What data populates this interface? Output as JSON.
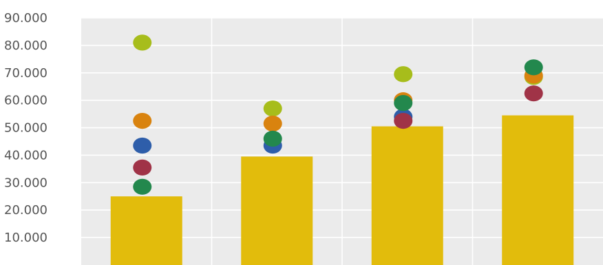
{
  "chart_data": {
    "type": "bar",
    "title": "",
    "xlabel": "",
    "ylabel": "",
    "ylim": [
      0,
      90000
    ],
    "yticks": [
      10000,
      20000,
      30000,
      40000,
      50000,
      60000,
      70000,
      80000,
      90000
    ],
    "ytick_labels": [
      "10.000",
      "20.000",
      "30.000",
      "40.000",
      "50.000",
      "60.000",
      "70.000",
      "80.000",
      "90.000"
    ],
    "grid": true,
    "bar_color": "#E2BC0C",
    "plot_background": "#EBEBEB",
    "grid_color": "#FFFFFF",
    "category_count": 4,
    "bar_values": [
      25000,
      39500,
      50500,
      54500
    ],
    "point_series": [
      {
        "color": "#A7BD1B",
        "values": [
          81000,
          57000,
          69500,
          68500
        ]
      },
      {
        "color": "#D9830F",
        "values": [
          52500,
          51500,
          60000,
          69000
        ]
      },
      {
        "color": "#2E5EAA",
        "values": [
          43500,
          43500,
          54000,
          null
        ]
      },
      {
        "color": "#A03347",
        "values": [
          35500,
          null,
          52500,
          62500
        ]
      },
      {
        "color": "#23884D",
        "values": [
          28500,
          46000,
          59000,
          72000
        ]
      }
    ]
  }
}
